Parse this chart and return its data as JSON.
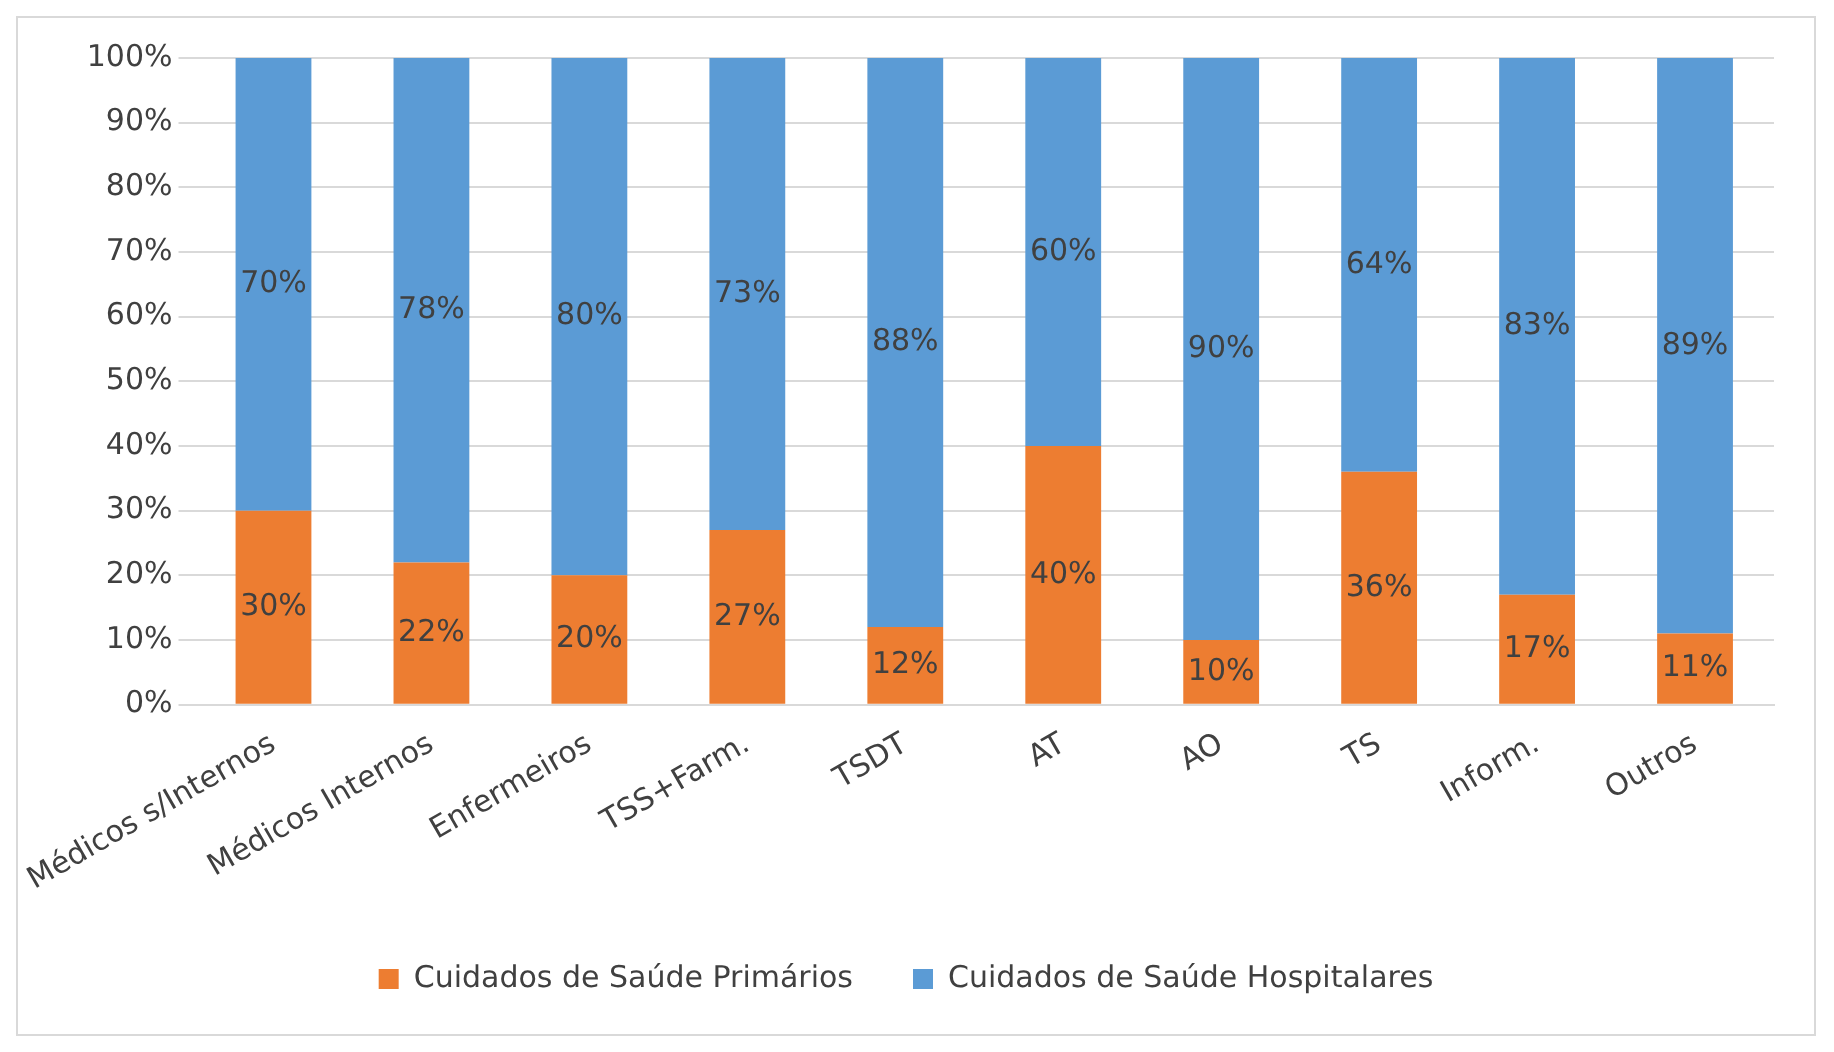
{
  "chart_data": {
    "type": "bar",
    "stacked": true,
    "categories": [
      "Médicos s/Internos",
      "Médicos Internos",
      "Enfermeiros",
      "TSS+Farm.",
      "TSDT",
      "AT",
      "AO",
      "TS",
      "Inform.",
      "Outros"
    ],
    "series": [
      {
        "name": "Cuidados de Saúde Primários",
        "color": "#ed7d31",
        "values": [
          30,
          22,
          20,
          27,
          12,
          40,
          10,
          36,
          17,
          11
        ],
        "value_labels": [
          "30%",
          "22%",
          "20%",
          "27%",
          "12%",
          "40%",
          "10%",
          "36%",
          "17%",
          "11%"
        ]
      },
      {
        "name": "Cuidados de Saúde Hospitalares",
        "color": "#5b9bd5",
        "values": [
          70,
          78,
          80,
          73,
          88,
          60,
          90,
          64,
          83,
          89
        ],
        "value_labels": [
          "70%",
          "78%",
          "80%",
          "73%",
          "88%",
          "60%",
          "90%",
          "64%",
          "83%",
          "89%"
        ]
      }
    ],
    "ylim": [
      0,
      100
    ],
    "yticks": [
      {
        "value": 0,
        "label": "0%"
      },
      {
        "value": 10,
        "label": "10%"
      },
      {
        "value": 20,
        "label": "20%"
      },
      {
        "value": 30,
        "label": "30%"
      },
      {
        "value": 40,
        "label": "40%"
      },
      {
        "value": 50,
        "label": "50%"
      },
      {
        "value": 60,
        "label": "60%"
      },
      {
        "value": 70,
        "label": "70%"
      },
      {
        "value": 80,
        "label": "80%"
      },
      {
        "value": 90,
        "label": "90%"
      },
      {
        "value": 100,
        "label": "100%"
      }
    ],
    "grid": "y",
    "legend": "bottom"
  }
}
